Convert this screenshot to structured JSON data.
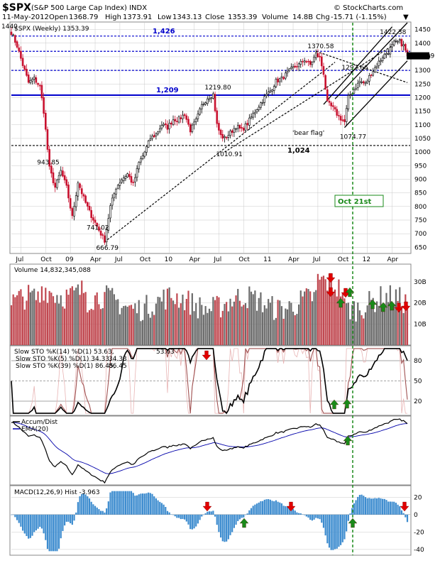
{
  "header": {
    "symbol": "$SPX",
    "name": "(S&P 500 Large Cap Index) INDX",
    "date": "11-May-2012",
    "open_label": "Open",
    "open": "1368.79",
    "high_label": "High",
    "high": "1373.91",
    "low_label": "Low",
    "low": "1343.13",
    "close_label": "Close",
    "close": "1353.39",
    "volume_label": "Volume",
    "volume": "14.8B",
    "chg_label": "Chg",
    "chg": "-15.71 (-1.15%)",
    "chg_arrow": "▼",
    "watermark": "© StockCharts.com"
  },
  "colors": {
    "up": "#000000",
    "down": "#c8102e",
    "level_blue": "#0000cc",
    "green_arrow": "#1a8a1a",
    "red_arrow": "#e00000",
    "oct_line": "#1a8a1a",
    "macd_hist": "#3d8ccf",
    "ema": "#0000aa",
    "grid": "#c8c8c8"
  },
  "chart_data": [
    {
      "type": "candlestick",
      "panel": "price",
      "legend": "$SPX (Weekly) 1353.39",
      "x_labels": [
        "Jul",
        "Oct",
        "09",
        "Apr",
        "Jul",
        "Oct",
        "10",
        "Apr",
        "Jul",
        "Oct",
        "11",
        "Apr",
        "Jul",
        "Oct",
        "12",
        "Apr"
      ],
      "y_ticks": [
        650,
        700,
        750,
        800,
        850,
        900,
        950,
        1000,
        1050,
        1100,
        1150,
        1200,
        1250,
        1300,
        1350,
        1400,
        1450
      ],
      "ylim": [
        630,
        1475
      ],
      "last_price_tag": "1353.39",
      "left_edge_tag": "1440",
      "close_path": [
        [
          0,
          1440
        ],
        [
          3,
          1390
        ],
        [
          6,
          1320
        ],
        [
          9,
          1255
        ],
        [
          12,
          1270
        ],
        [
          15,
          1240
        ],
        [
          17,
          1150
        ],
        [
          20,
          940
        ],
        [
          23,
          870
        ],
        [
          26,
          930
        ],
        [
          29,
          870
        ],
        [
          32,
          760
        ],
        [
          35,
          890
        ],
        [
          38,
          830
        ],
        [
          41,
          780
        ],
        [
          44,
          740
        ],
        [
          47,
          700
        ],
        [
          49,
          676
        ],
        [
          52,
          800
        ],
        [
          55,
          870
        ],
        [
          58,
          900
        ],
        [
          61,
          920
        ],
        [
          64,
          880
        ],
        [
          67,
          960
        ],
        [
          70,
          1000
        ],
        [
          73,
          1050
        ],
        [
          76,
          1065
        ],
        [
          79,
          1100
        ],
        [
          82,
          1090
        ],
        [
          85,
          1120
        ],
        [
          88,
          1120
        ],
        [
          91,
          1140
        ],
        [
          94,
          1080
        ],
        [
          97,
          1115
        ],
        [
          100,
          1170
        ],
        [
          103,
          1200
        ],
        [
          106,
          1212
        ],
        [
          108,
          1100
        ],
        [
          110,
          1060
        ],
        [
          112,
          1050
        ],
        [
          115,
          1070
        ],
        [
          118,
          1095
        ],
        [
          121,
          1080
        ],
        [
          124,
          1105
        ],
        [
          127,
          1140
        ],
        [
          130,
          1170
        ],
        [
          133,
          1200
        ],
        [
          136,
          1225
        ],
        [
          139,
          1260
        ],
        [
          142,
          1270
        ],
        [
          145,
          1290
        ],
        [
          148,
          1310
        ],
        [
          151,
          1320
        ],
        [
          154,
          1340
        ],
        [
          157,
          1320
        ],
        [
          160,
          1360
        ],
        [
          162,
          1345
        ],
        [
          164,
          1290
        ],
        [
          166,
          1180
        ],
        [
          169,
          1160
        ],
        [
          172,
          1130
        ],
        [
          175,
          1110
        ],
        [
          177,
          1200
        ],
        [
          180,
          1230
        ],
        [
          183,
          1260
        ],
        [
          186,
          1250
        ],
        [
          189,
          1290
        ],
        [
          192,
          1320
        ],
        [
          195,
          1350
        ],
        [
          198,
          1370
        ],
        [
          201,
          1400
        ],
        [
          204,
          1405
        ],
        [
          206,
          1390
        ],
        [
          208,
          1353.39
        ]
      ],
      "levels": [
        {
          "value": 1426,
          "label": "1,426",
          "style": "dashed",
          "color": "blue"
        },
        {
          "value": 1370,
          "label": "",
          "style": "dashed",
          "color": "blue"
        },
        {
          "value": 1300,
          "label": "",
          "style": "dashed",
          "color": "blue"
        },
        {
          "value": 1209,
          "label": "1,209",
          "style": "solid",
          "color": "blue"
        },
        {
          "value": 1024,
          "label": "1,024",
          "style": "dashed",
          "color": "black"
        }
      ],
      "annotations": [
        {
          "week": 18,
          "value": 943.85,
          "text": "943.85"
        },
        {
          "week": 44,
          "value": 741.02,
          "text": "741.02"
        },
        {
          "week": 49,
          "value": 666.79,
          "text": "666.79"
        },
        {
          "week": 106,
          "value": 1219.8,
          "text": "1219.80"
        },
        {
          "week": 112,
          "value": 1010.91,
          "text": "1010.91"
        },
        {
          "week": 160,
          "value": 1370.58,
          "text": "1370.58"
        },
        {
          "week": 172,
          "value": 1292.66,
          "text": "1292.66"
        },
        {
          "week": 177,
          "value": 1074.77,
          "text": "1074.77"
        },
        {
          "week": 198,
          "value": 1422.38,
          "text": "1422.38"
        }
      ],
      "bear_flag_text": "'bear flag'",
      "oct21_text": "Oct 21st"
    },
    {
      "type": "bar",
      "panel": "volume",
      "legend": "Volume 14,832,345,088",
      "y_tick_labels": [
        "10B",
        "20B",
        "30B"
      ],
      "y_ticks": [
        10,
        20,
        30
      ],
      "ylim": [
        0,
        38
      ],
      "unit": "B"
    },
    {
      "type": "line",
      "panel": "stochastics",
      "legend": [
        {
          "text": "Slow STO %K(14) %D(1) 53.63, ",
          "value": "53.63"
        },
        {
          "text": "Slow STO %K(5) %D(1) 34.33, ",
          "value": "34.33"
        },
        {
          "text": "Slow STO %K(39) %D(1) 86.45, ",
          "value": "86.45"
        }
      ],
      "y_tick_labels": [
        "20",
        "50",
        "80"
      ],
      "ylim": [
        0,
        100
      ]
    },
    {
      "type": "line",
      "panel": "accum_dist",
      "legend": [
        "Accum/Dist",
        "EMA(20)"
      ]
    },
    {
      "type": "bar",
      "panel": "macd",
      "legend": "MACD(12,26,9) Hist -3.963",
      "y_tick_labels": [
        "-40",
        "-20",
        "0",
        "20"
      ],
      "y_ticks": [
        -40,
        -20,
        0,
        20
      ],
      "ylim": [
        -45,
        30
      ]
    }
  ]
}
